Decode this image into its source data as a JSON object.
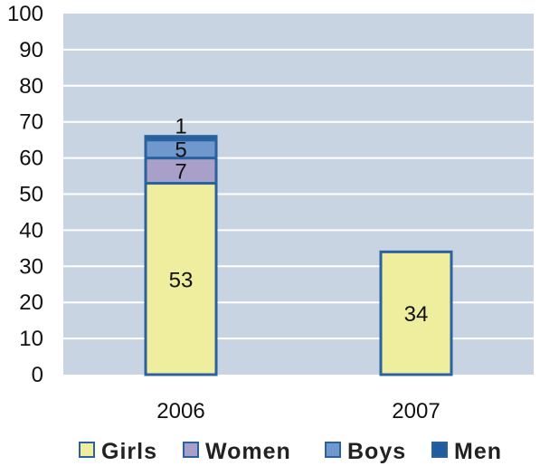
{
  "chart_data": {
    "type": "bar",
    "stacked": true,
    "categories": [
      "2006",
      "2007"
    ],
    "series": [
      {
        "name": "Girls",
        "values": [
          53,
          34
        ],
        "color": "#eeee9e"
      },
      {
        "name": "Women",
        "values": [
          7,
          null
        ],
        "color": "#a9a0c9"
      },
      {
        "name": "Boys",
        "values": [
          5,
          null
        ],
        "color": "#6f98cf"
      },
      {
        "name": "Men",
        "values": [
          1,
          null
        ],
        "color": "#1f5d9e"
      }
    ],
    "ylim": [
      0,
      100
    ],
    "yticks": [
      0,
      10,
      20,
      30,
      40,
      50,
      60,
      70,
      80,
      90,
      100
    ],
    "grid": true,
    "legend_position": "bottom",
    "plot_background": "#c9d4e2",
    "bar_outline_color": "#2a62a0"
  }
}
